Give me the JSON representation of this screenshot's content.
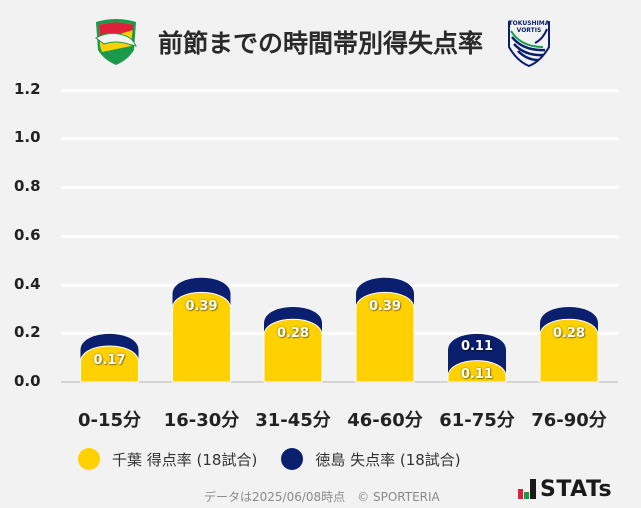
{
  "header": {
    "title": "前節までの時間帯別得失点率",
    "home_logo": "jef-united-chiba-crest",
    "away_logo": "tokushima-vortis-crest",
    "away_logo_text": "TOKUSHIMA VORTIS"
  },
  "colors": {
    "home": "#ffd100",
    "away": "#0a1f6e",
    "grid": "#ffffff",
    "background": "#f2f2f2"
  },
  "chart_data": {
    "type": "bar",
    "title": "前節までの時間帯別得失点率",
    "xlabel": "",
    "ylabel": "",
    "ylim": [
      0,
      1.2
    ],
    "yticks": [
      "0.0",
      "0.2",
      "0.4",
      "0.6",
      "0.8",
      "1.0",
      "1.2"
    ],
    "grid": true,
    "legend_position": "bottom",
    "categories": [
      "0-15分",
      "16-30分",
      "31-45分",
      "46-60分",
      "61-75分",
      "76-90分"
    ],
    "series": [
      {
        "name": "千葉 得点率 (18試合)",
        "color": "#ffd100",
        "values": [
          0.17,
          0.39,
          0.28,
          0.39,
          0.11,
          0.28
        ],
        "source": "read from bar labels"
      },
      {
        "name": "徳島 失点率 (18試合)",
        "color": "#0a1f6e",
        "values": [
          0.05,
          0.06,
          0.05,
          0.06,
          0.11,
          0.05
        ],
        "source": "only 61-75分 (0.11) is labeled; the other five values are estimated from the navy cap height and may be off by a few hundredths"
      }
    ],
    "stacked": true,
    "value_labels": [
      {
        "category": "0-15分",
        "series": "home",
        "text": "0.17"
      },
      {
        "category": "16-30分",
        "series": "home",
        "text": "0.39"
      },
      {
        "category": "31-45分",
        "series": "home",
        "text": "0.28"
      },
      {
        "category": "46-60分",
        "series": "home",
        "text": "0.39"
      },
      {
        "category": "61-75分",
        "series": "away",
        "text": "0.11"
      },
      {
        "category": "61-75分",
        "series": "home",
        "text": "0.11"
      },
      {
        "category": "76-90分",
        "series": "home",
        "text": "0.28"
      }
    ]
  },
  "legend": {
    "items": [
      {
        "label": "千葉 得点率 (18試合)",
        "color": "#ffd100"
      },
      {
        "label": "徳島 失点率 (18試合)",
        "color": "#0a1f6e"
      }
    ]
  },
  "footer": {
    "note": "データは2025/06/08時点　© SPORTERIA",
    "brand": "STATs"
  }
}
